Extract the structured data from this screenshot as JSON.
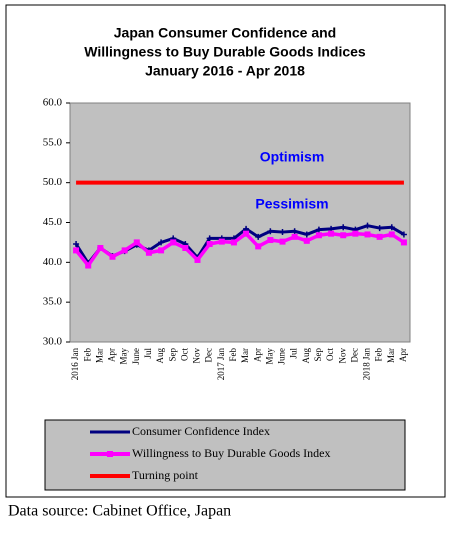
{
  "chart_data": {
    "type": "line",
    "title": [
      "Japan Consumer Confidence and",
      "Willingness to Buy Durable Goods Indices",
      "January 2016 - Apr 2018"
    ],
    "categories": [
      "2016 Jan",
      "Feb",
      "Mar",
      "Apr",
      "May",
      "June",
      "Jul",
      "Aug",
      "Sep",
      "Oct",
      "Nov",
      "Dec",
      "2017 Jan",
      "Feb",
      "Mar",
      "Apr",
      "May",
      "June",
      "Jul",
      "Aug",
      "Sep",
      "Oct",
      "Nov",
      "Dec",
      "2018 Jan",
      "Feb",
      "Mar",
      "Apr"
    ],
    "series": [
      {
        "name": "Consumer Confidence Index",
        "color": "#000080",
        "marker": "cross",
        "values": [
          42.3,
          39.9,
          41.8,
          40.8,
          41.4,
          42.2,
          41.5,
          42.5,
          43.0,
          42.3,
          40.6,
          43.0,
          43.0,
          43.0,
          44.2,
          43.2,
          43.9,
          43.8,
          43.9,
          43.5,
          44.1,
          44.2,
          44.4,
          44.1,
          44.6,
          44.3,
          44.4,
          43.5
        ]
      },
      {
        "name": "Willingness to Buy Durable Goods Index",
        "color": "#ff00ff",
        "marker": "square",
        "values": [
          41.5,
          39.6,
          41.8,
          40.7,
          41.5,
          42.5,
          41.2,
          41.5,
          42.5,
          41.8,
          40.3,
          42.3,
          42.6,
          42.5,
          43.6,
          42.0,
          42.8,
          42.6,
          43.2,
          42.7,
          43.4,
          43.6,
          43.4,
          43.6,
          43.5,
          43.2,
          43.5,
          42.5
        ]
      },
      {
        "name": "Turning point",
        "color": "#ff0000",
        "marker": "none",
        "values": [
          50,
          50,
          50,
          50,
          50,
          50,
          50,
          50,
          50,
          50,
          50,
          50,
          50,
          50,
          50,
          50,
          50,
          50,
          50,
          50,
          50,
          50,
          50,
          50,
          50,
          50,
          50,
          50
        ]
      }
    ],
    "annotations": [
      "Optimism",
      "Pessimism"
    ],
    "ylim": [
      30,
      60
    ],
    "yticks": [
      {
        "value": 30,
        "label": "30.0"
      },
      {
        "value": 35,
        "label": "35.0"
      },
      {
        "value": 40,
        "label": "40.0"
      },
      {
        "value": 45,
        "label": "45.0"
      },
      {
        "value": 50,
        "label": "50.0"
      },
      {
        "value": 55,
        "label": "55.0"
      },
      {
        "value": 60,
        "label": "60.0"
      }
    ],
    "grid": false,
    "legend": "bottom",
    "source": "Data source: Cabinet Office, Japan"
  }
}
